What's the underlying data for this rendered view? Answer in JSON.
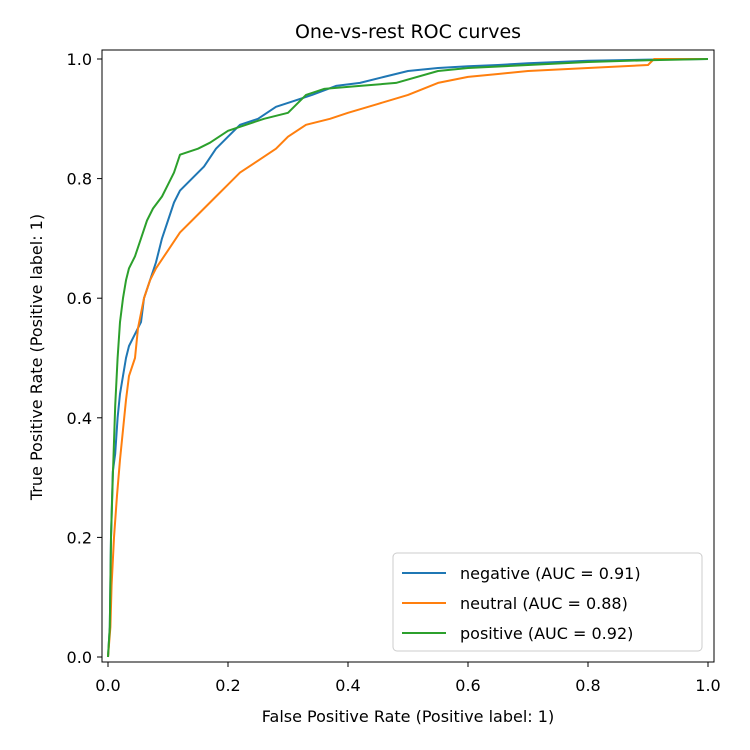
{
  "chart_data": {
    "type": "line",
    "title": "One-vs-rest ROC curves",
    "xlabel": "False Positive Rate (Positive label: 1)",
    "ylabel": "True Positive Rate (Positive label: 1)",
    "xlim": [
      0.0,
      1.0
    ],
    "ylim": [
      0.0,
      1.0
    ],
    "xticks": [
      "0.0",
      "0.2",
      "0.4",
      "0.6",
      "0.8",
      "1.0"
    ],
    "yticks": [
      "0.0",
      "0.2",
      "0.4",
      "0.6",
      "0.8",
      "1.0"
    ],
    "grid": false,
    "legend_position": "bottom-right",
    "series": [
      {
        "name": "negative (AUC = 0.91)",
        "color": "#1f77b4",
        "points": [
          [
            0,
            0
          ],
          [
            0.003,
            0.05
          ],
          [
            0.005,
            0.2
          ],
          [
            0.008,
            0.31
          ],
          [
            0.012,
            0.34
          ],
          [
            0.016,
            0.4
          ],
          [
            0.02,
            0.44
          ],
          [
            0.025,
            0.47
          ],
          [
            0.03,
            0.5
          ],
          [
            0.035,
            0.52
          ],
          [
            0.045,
            0.54
          ],
          [
            0.055,
            0.56
          ],
          [
            0.06,
            0.6
          ],
          [
            0.07,
            0.63
          ],
          [
            0.08,
            0.66
          ],
          [
            0.09,
            0.7
          ],
          [
            0.1,
            0.73
          ],
          [
            0.11,
            0.76
          ],
          [
            0.12,
            0.78
          ],
          [
            0.14,
            0.8
          ],
          [
            0.16,
            0.82
          ],
          [
            0.18,
            0.85
          ],
          [
            0.2,
            0.87
          ],
          [
            0.22,
            0.89
          ],
          [
            0.25,
            0.9
          ],
          [
            0.28,
            0.92
          ],
          [
            0.31,
            0.93
          ],
          [
            0.34,
            0.94
          ],
          [
            0.38,
            0.955
          ],
          [
            0.42,
            0.96
          ],
          [
            0.46,
            0.97
          ],
          [
            0.5,
            0.98
          ],
          [
            0.55,
            0.985
          ],
          [
            0.6,
            0.988
          ],
          [
            0.65,
            0.99
          ],
          [
            0.7,
            0.993
          ],
          [
            0.75,
            0.995
          ],
          [
            0.8,
            0.997
          ],
          [
            0.9,
            0.999
          ],
          [
            1.0,
            1.0
          ]
        ]
      },
      {
        "name": "neutral (AUC = 0.88)",
        "color": "#ff7f0e",
        "points": [
          [
            0,
            0
          ],
          [
            0.004,
            0.05
          ],
          [
            0.006,
            0.12
          ],
          [
            0.01,
            0.2
          ],
          [
            0.015,
            0.27
          ],
          [
            0.02,
            0.33
          ],
          [
            0.025,
            0.38
          ],
          [
            0.03,
            0.43
          ],
          [
            0.035,
            0.47
          ],
          [
            0.045,
            0.5
          ],
          [
            0.05,
            0.55
          ],
          [
            0.06,
            0.6
          ],
          [
            0.07,
            0.63
          ],
          [
            0.08,
            0.65
          ],
          [
            0.1,
            0.68
          ],
          [
            0.12,
            0.71
          ],
          [
            0.14,
            0.73
          ],
          [
            0.16,
            0.75
          ],
          [
            0.18,
            0.77
          ],
          [
            0.2,
            0.79
          ],
          [
            0.22,
            0.81
          ],
          [
            0.25,
            0.83
          ],
          [
            0.28,
            0.85
          ],
          [
            0.3,
            0.87
          ],
          [
            0.33,
            0.89
          ],
          [
            0.37,
            0.9
          ],
          [
            0.4,
            0.91
          ],
          [
            0.45,
            0.925
          ],
          [
            0.5,
            0.94
          ],
          [
            0.55,
            0.96
          ],
          [
            0.6,
            0.97
          ],
          [
            0.65,
            0.975
          ],
          [
            0.7,
            0.98
          ],
          [
            0.8,
            0.985
          ],
          [
            0.9,
            0.99
          ],
          [
            0.91,
            1.0
          ],
          [
            1.0,
            1.0
          ]
        ]
      },
      {
        "name": "positive (AUC = 0.92)",
        "color": "#2ca02c",
        "points": [
          [
            0,
            0
          ],
          [
            0.003,
            0.05
          ],
          [
            0.005,
            0.2
          ],
          [
            0.008,
            0.3
          ],
          [
            0.012,
            0.42
          ],
          [
            0.016,
            0.5
          ],
          [
            0.02,
            0.56
          ],
          [
            0.025,
            0.6
          ],
          [
            0.03,
            0.63
          ],
          [
            0.035,
            0.65
          ],
          [
            0.045,
            0.67
          ],
          [
            0.055,
            0.7
          ],
          [
            0.065,
            0.73
          ],
          [
            0.075,
            0.75
          ],
          [
            0.09,
            0.77
          ],
          [
            0.1,
            0.79
          ],
          [
            0.11,
            0.81
          ],
          [
            0.12,
            0.84
          ],
          [
            0.15,
            0.85
          ],
          [
            0.17,
            0.86
          ],
          [
            0.2,
            0.88
          ],
          [
            0.23,
            0.89
          ],
          [
            0.26,
            0.9
          ],
          [
            0.3,
            0.91
          ],
          [
            0.33,
            0.94
          ],
          [
            0.36,
            0.95
          ],
          [
            0.42,
            0.955
          ],
          [
            0.48,
            0.96
          ],
          [
            0.55,
            0.98
          ],
          [
            0.6,
            0.985
          ],
          [
            0.7,
            0.99
          ],
          [
            0.8,
            0.995
          ],
          [
            0.9,
            0.998
          ],
          [
            1.0,
            1.0
          ]
        ]
      }
    ]
  }
}
